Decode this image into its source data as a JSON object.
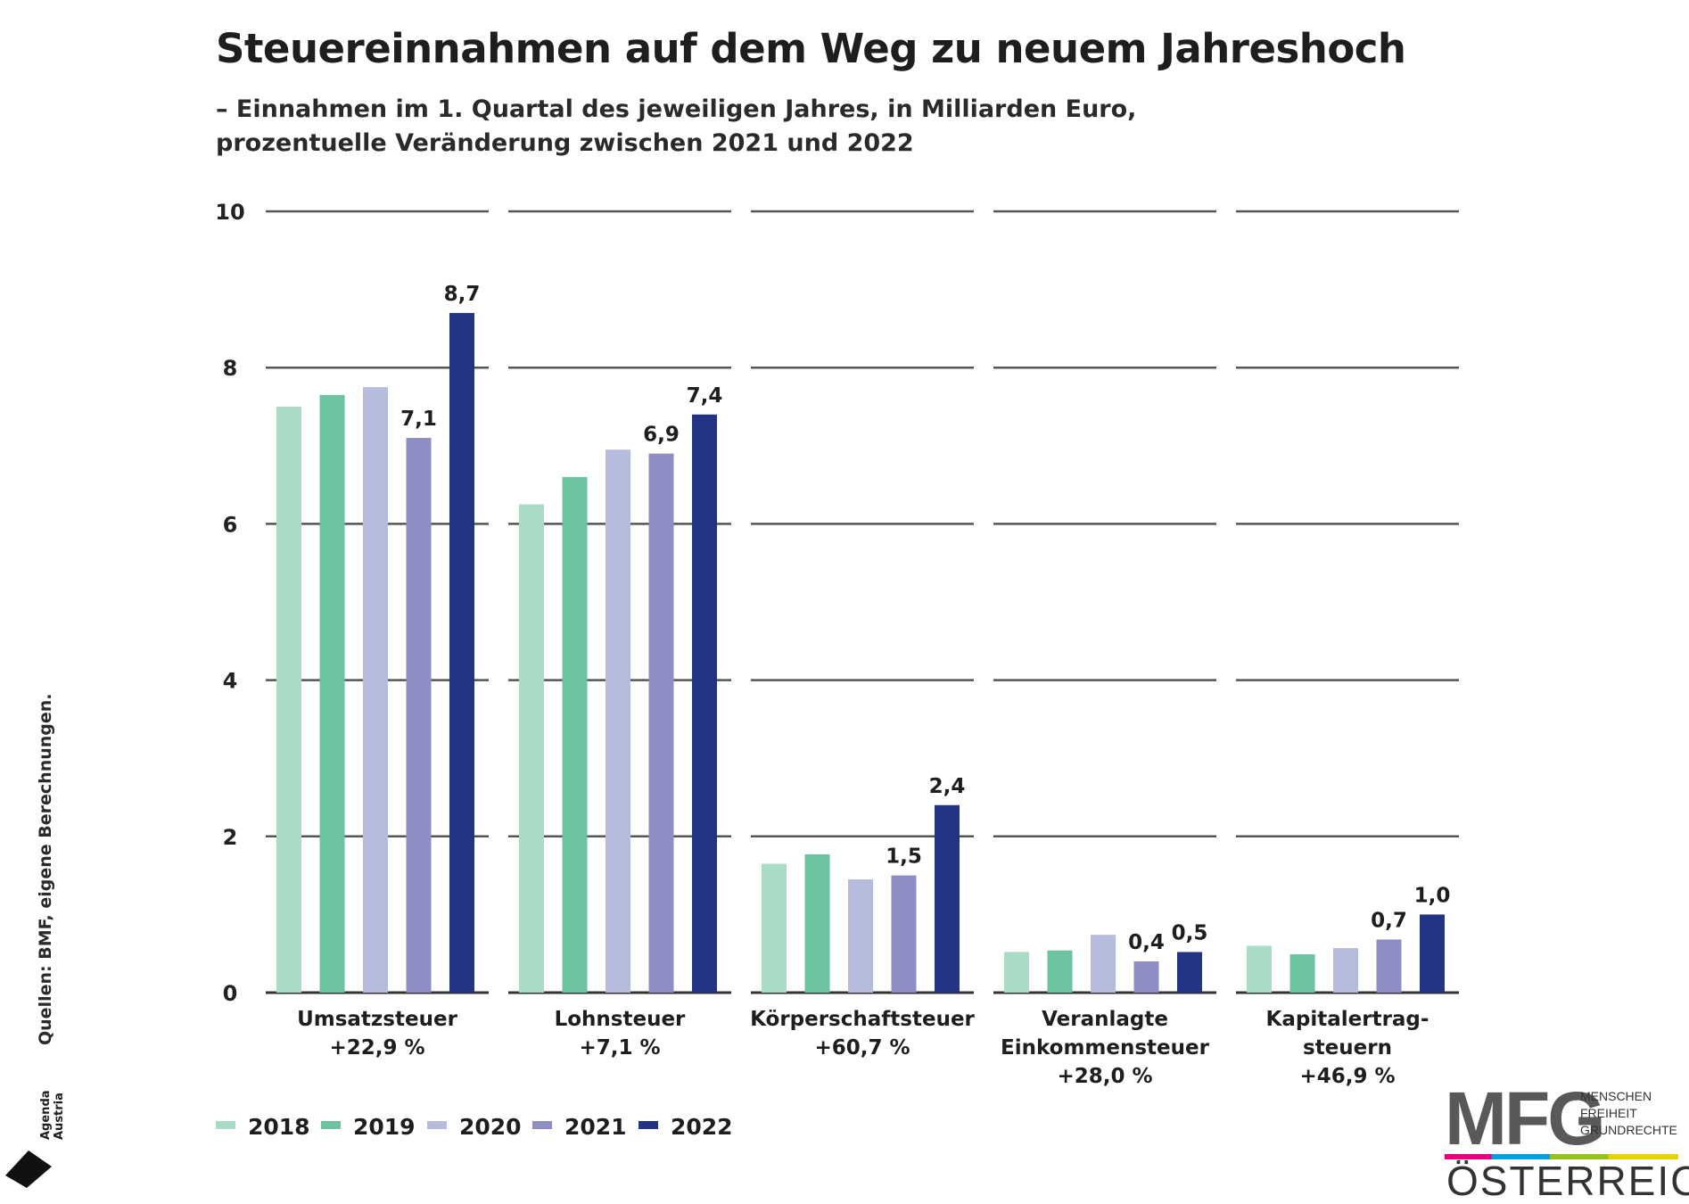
{
  "header": {
    "title": "Steuereinnahmen auf dem Weg zu neuem Jahreshoch",
    "subtitle_line1": "– Einnahmen im 1. Quartal des jeweiligen Jahres, in Milliarden Euro,",
    "subtitle_line2": "prozentuelle Veränderung zwischen 2021 und 2022"
  },
  "source": "Quellen: BMF, eigene Berechnungen.",
  "logos": {
    "agenda_line1": "Agenda",
    "agenda_line2": "Austria",
    "mfg_big": "MFG",
    "mfg_line1": "MENSCHEN",
    "mfg_line2": "FREIHEIT",
    "mfg_line3": "GRUNDRECHTE",
    "mfg_country": "ÖSTERREICH"
  },
  "chart_data": {
    "type": "bar",
    "title": "Steuereinnahmen auf dem Weg zu neuem Jahreshoch",
    "ylim": [
      0,
      10
    ],
    "yticks": [
      0,
      2,
      4,
      6,
      8,
      10
    ],
    "grid": true,
    "legend_position": "bottom-left",
    "categories": [
      {
        "label": [
          "Umsatzsteuer",
          "+22,9 %"
        ]
      },
      {
        "label": [
          "Lohnsteuer",
          "+7,1 %"
        ]
      },
      {
        "label": [
          "Körperschaftsteuer",
          "+60,7 %"
        ]
      },
      {
        "label": [
          "Veranlagte",
          "Einkommensteuer",
          "+28,0 %"
        ]
      },
      {
        "label": [
          "Kapitalertrag-",
          "steuern",
          "+46,9 %"
        ]
      }
    ],
    "series": [
      {
        "name": "2018",
        "color": "#a8dcc6",
        "values": [
          7.5,
          6.25,
          1.65,
          0.52,
          0.6
        ],
        "labels": [
          "",
          "",
          "",
          "",
          ""
        ]
      },
      {
        "name": "2019",
        "color": "#6dc3a0",
        "values": [
          7.65,
          6.6,
          1.77,
          0.54,
          0.49
        ],
        "labels": [
          "",
          "",
          "",
          "",
          ""
        ]
      },
      {
        "name": "2020",
        "color": "#b6bcdd",
        "values": [
          7.75,
          6.95,
          1.45,
          0.74,
          0.57
        ],
        "labels": [
          "",
          "",
          "",
          "",
          ""
        ]
      },
      {
        "name": "2021",
        "color": "#8e8ec4",
        "values": [
          7.1,
          6.9,
          1.5,
          0.4,
          0.68
        ],
        "labels": [
          "7,1",
          "6,9",
          "1,5",
          "0,4",
          "0,7"
        ]
      },
      {
        "name": "2022",
        "color": "#243484",
        "values": [
          8.7,
          7.4,
          2.4,
          0.52,
          1.0
        ],
        "labels": [
          "8,7",
          "7,4",
          "2,4",
          "0,5",
          "1,0"
        ]
      }
    ]
  }
}
